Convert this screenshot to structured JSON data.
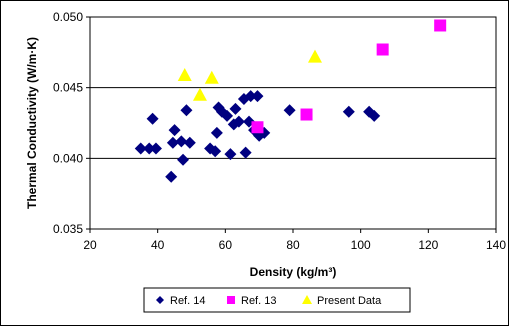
{
  "chart_data": {
    "type": "scatter",
    "xlabel": "Density (kg/m³)",
    "ylabel": "Thermal Conductivity (W/m·K)",
    "xlim": [
      20,
      140
    ],
    "ylim": [
      0.035,
      0.05
    ],
    "x_ticks": [
      "20",
      "40",
      "60",
      "80",
      "100",
      "120",
      "140"
    ],
    "y_ticks": [
      "0.035",
      "0.040",
      "0.045",
      "0.050"
    ],
    "grid": "horizontal",
    "legend_position": "bottom",
    "series": [
      {
        "name": "Ref. 14",
        "marker": "diamond",
        "color": "#000080",
        "points": [
          [
            35,
            0.0407
          ],
          [
            37.5,
            0.0407
          ],
          [
            39.5,
            0.0407
          ],
          [
            38.5,
            0.0428
          ],
          [
            44,
            0.0387
          ],
          [
            44.5,
            0.0411
          ],
          [
            45,
            0.042
          ],
          [
            47,
            0.0412
          ],
          [
            47.5,
            0.0399
          ],
          [
            48.5,
            0.0434
          ],
          [
            49.5,
            0.0411
          ],
          [
            55.5,
            0.0407
          ],
          [
            57,
            0.0405
          ],
          [
            57.5,
            0.0418
          ],
          [
            58,
            0.0436
          ],
          [
            59,
            0.0433
          ],
          [
            60.5,
            0.043
          ],
          [
            61.5,
            0.0403
          ],
          [
            62.5,
            0.0424
          ],
          [
            63,
            0.0435
          ],
          [
            64,
            0.0426
          ],
          [
            65.5,
            0.0442
          ],
          [
            66,
            0.0404
          ],
          [
            67,
            0.0426
          ],
          [
            67.5,
            0.0444
          ],
          [
            68.5,
            0.042
          ],
          [
            69.5,
            0.0444
          ],
          [
            70,
            0.0416
          ],
          [
            71.5,
            0.0418
          ],
          [
            79,
            0.0434
          ],
          [
            96.5,
            0.0433
          ],
          [
            102.5,
            0.0433
          ],
          [
            104,
            0.043
          ]
        ]
      },
      {
        "name": "Ref. 13",
        "marker": "square",
        "color": "#ff00ff",
        "points": [
          [
            69.5,
            0.0422
          ],
          [
            84,
            0.0431
          ],
          [
            106.5,
            0.0477
          ],
          [
            123.5,
            0.0494
          ]
        ]
      },
      {
        "name": "Present Data",
        "marker": "triangle",
        "color": "#ffff00",
        "points": [
          [
            48,
            0.0459
          ],
          [
            52.5,
            0.0445
          ],
          [
            56,
            0.0457
          ],
          [
            86.5,
            0.0472
          ]
        ]
      }
    ]
  }
}
